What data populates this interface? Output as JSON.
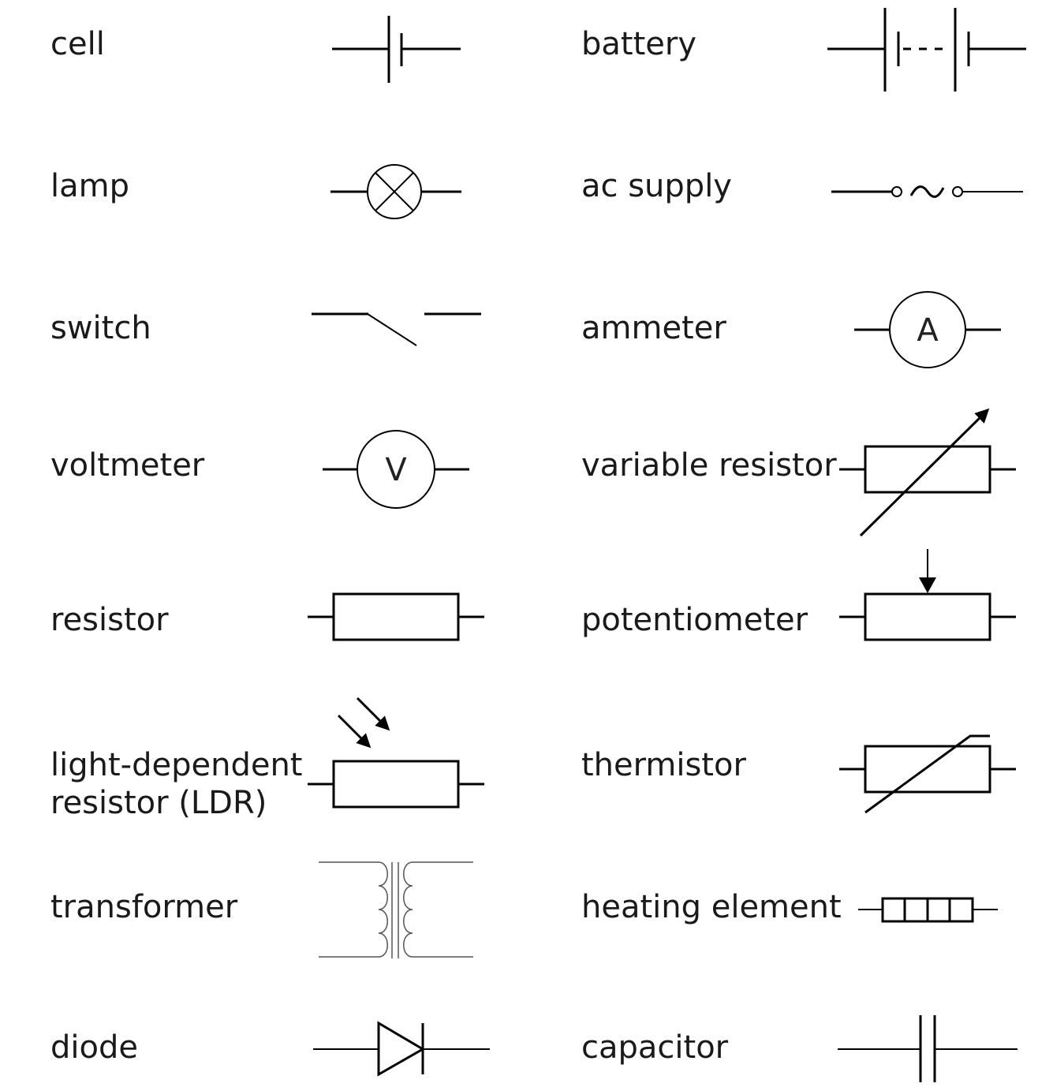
{
  "components": {
    "cell": "cell",
    "battery": "battery",
    "lamp": "lamp",
    "ac_supply": "ac supply",
    "switch": "switch",
    "ammeter": "ammeter",
    "voltmeter": "voltmeter",
    "variable_resistor": "variable resistor",
    "resistor": "resistor",
    "potentiometer": "potentiometer",
    "ldr_line1": "light-dependent",
    "ldr_line2": "resistor (LDR)",
    "thermistor": "thermistor",
    "transformer": "transformer",
    "heating_element": "heating element",
    "diode": "diode",
    "capacitor": "capacitor"
  },
  "symbol_text": {
    "ammeter_letter": "A",
    "voltmeter_letter": "V"
  }
}
